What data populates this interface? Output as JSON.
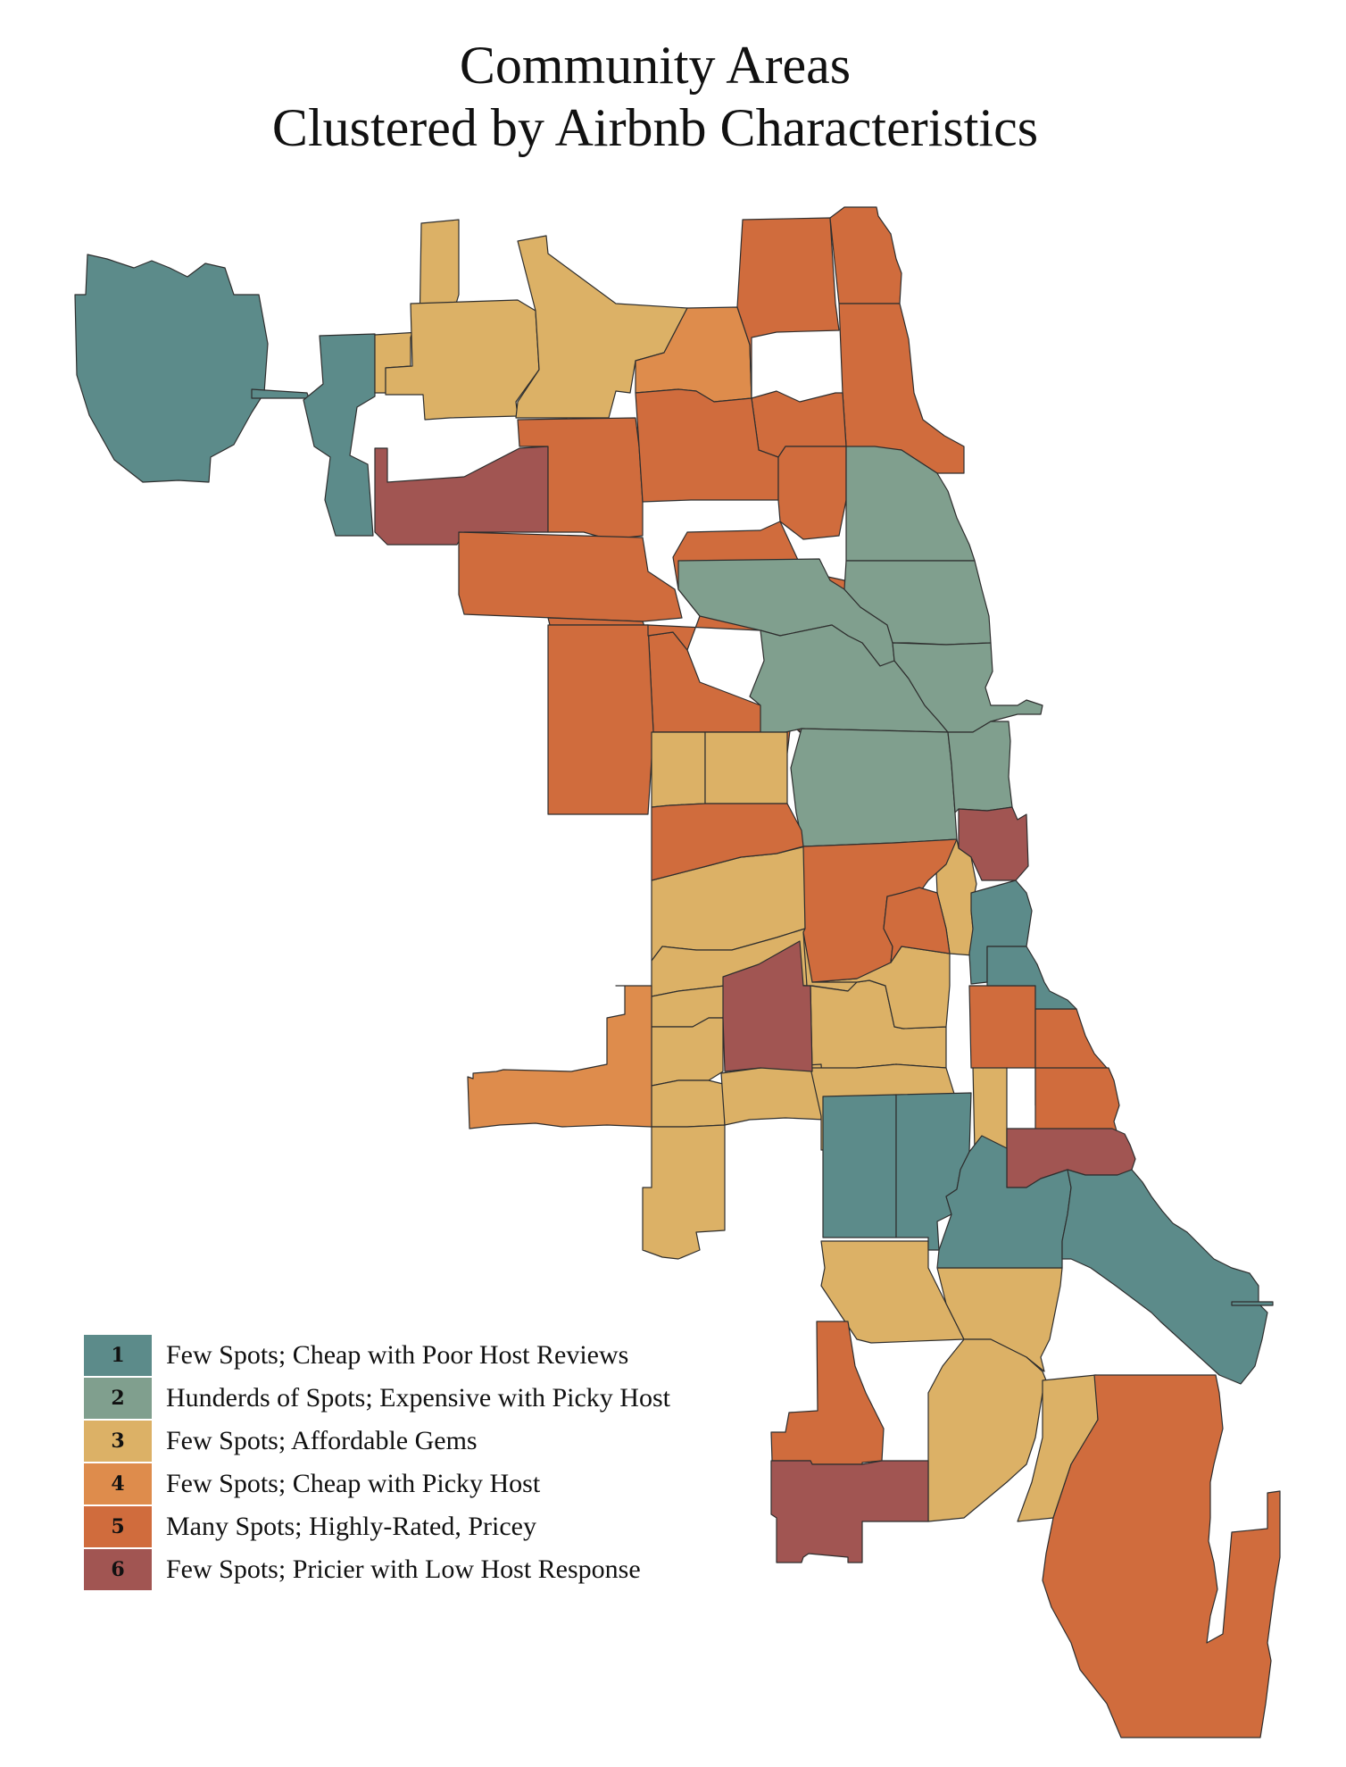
{
  "title": {
    "line1": "Community Areas",
    "line2": "Clustered by Airbnb Characteristics"
  },
  "colors": {
    "1": "#5c8b8a",
    "2": "#809f8e",
    "3": "#dcb166",
    "4": "#de8c4c",
    "5": "#d06c3d",
    "6": "#a15552"
  },
  "legend": [
    {
      "number": "1",
      "label": "Few Spots; Cheap with Poor Host Reviews",
      "color": "#5c8b8a"
    },
    {
      "number": "2",
      "label": "Hunderds of Spots; Expensive with Picky Host",
      "color": "#809f8e"
    },
    {
      "number": "3",
      "label": "Few Spots; Affordable Gems",
      "color": "#dcb166"
    },
    {
      "number": "4",
      "label": "Few Spots; Cheap with Picky Host",
      "color": "#de8c4c"
    },
    {
      "number": "5",
      "label": "Many Spots; Highly-Rated, Pricey",
      "color": "#d06c3d"
    },
    {
      "number": "6",
      "label": "Few Spots; Pricier with Low Host Response",
      "color": "#a15552"
    }
  ]
}
